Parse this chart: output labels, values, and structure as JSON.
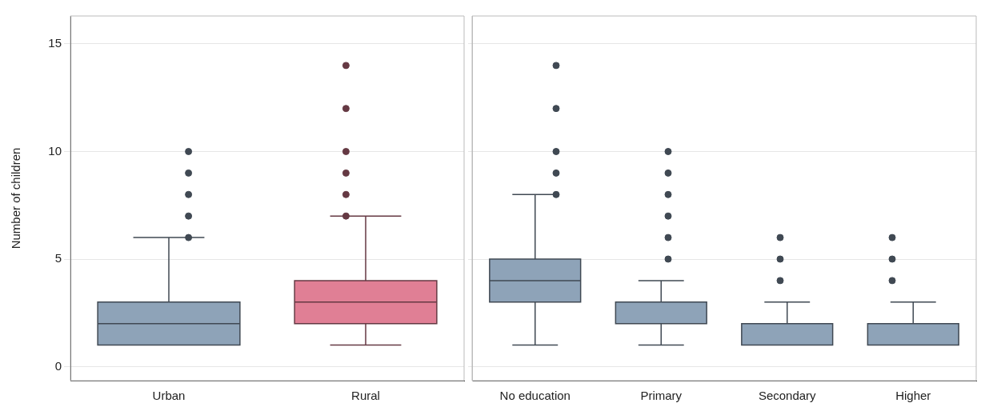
{
  "chart_data": [
    {
      "type": "box",
      "ylabel": "Number of children",
      "categories": [
        "Urban",
        "Rural"
      ],
      "colors": [
        "#8ea3b8",
        "#e07f95"
      ],
      "boxes": [
        {
          "low": 1,
          "q1": 1,
          "median": 2,
          "q3": 3,
          "high": 6,
          "outliers": [
            6,
            7,
            8,
            9,
            10
          ]
        },
        {
          "low": 1,
          "q1": 2,
          "median": 3,
          "q3": 4,
          "high": 7,
          "outliers": [
            7,
            8,
            9,
            10,
            12,
            14
          ]
        }
      ],
      "ylim": [
        -0.65,
        16.3
      ],
      "yticks": [
        0,
        5,
        10,
        15
      ],
      "grid": "y",
      "marker": "circle"
    },
    {
      "type": "box",
      "categories": [
        "No education",
        "Primary",
        "Secondary",
        "Higher"
      ],
      "colors": [
        "#8ea3b8",
        "#8ea3b8",
        "#8ea3b8",
        "#8ea3b8"
      ],
      "boxes": [
        {
          "low": 1,
          "q1": 3,
          "median": 4,
          "q3": 5,
          "high": 8,
          "outliers": [
            8,
            9,
            10,
            12,
            14
          ]
        },
        {
          "low": 1,
          "q1": 2,
          "median": 3,
          "q3": 3,
          "high": 4,
          "outliers": [
            5,
            6,
            7,
            8,
            9,
            10
          ]
        },
        {
          "low": 1,
          "q1": 1,
          "median": 1,
          "q3": 2,
          "high": 3,
          "outliers": [
            4,
            5,
            6
          ]
        },
        {
          "low": 1,
          "q1": 1,
          "median": 1,
          "q3": 2,
          "high": 3,
          "outliers": [
            4,
            5,
            6
          ]
        }
      ],
      "ylim": [
        -0.65,
        16.3
      ],
      "yticks": [
        0,
        5,
        10,
        15
      ],
      "grid": "y",
      "tick_labels": "x",
      "marker": "circle"
    }
  ]
}
